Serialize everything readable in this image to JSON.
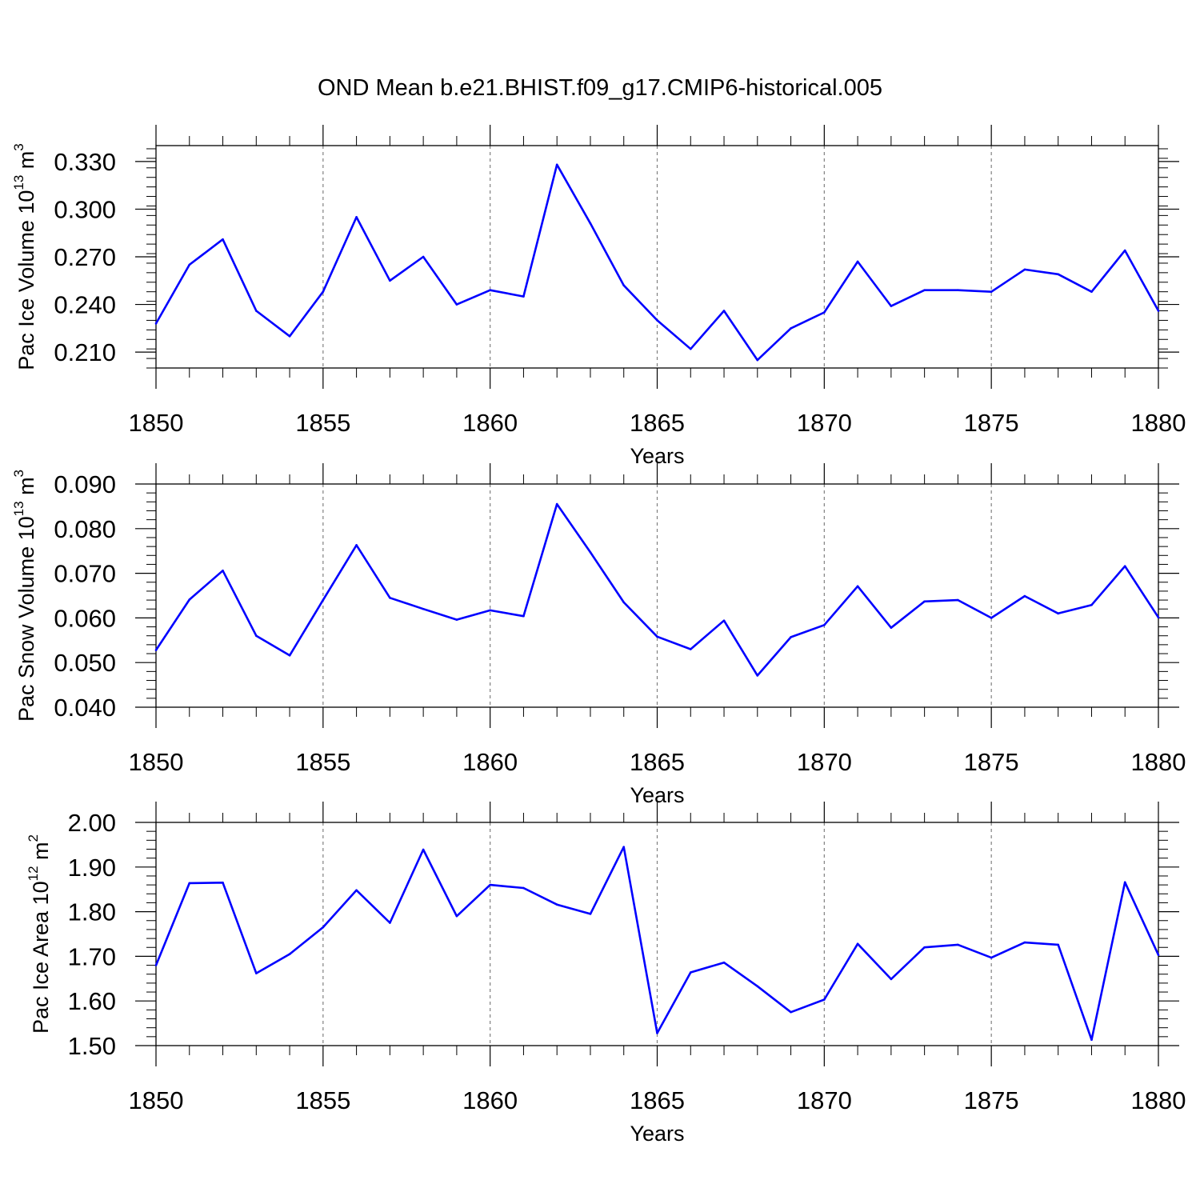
{
  "figure_title": "OND Mean b.e21.BHIST.f09_g17.CMIP6-historical.005",
  "colors": {
    "line": "#0000ff",
    "axis": "#000000",
    "grid": "#808080"
  },
  "chart_data": [
    {
      "type": "line",
      "title": "OND Mean b.e21.BHIST.f09_g17.CMIP6-historical.005",
      "xlabel": "Years",
      "ylabel": {
        "base": "Pac Ice Volume 10",
        "exp": "13",
        "unit": " m",
        "unit_exp": "3"
      },
      "xlim": [
        1850,
        1880
      ],
      "ylim": [
        0.2,
        0.34
      ],
      "xticks": [
        1850,
        1855,
        1860,
        1865,
        1870,
        1875,
        1880
      ],
      "xtick_labels": [
        "1850",
        "1855",
        "1860",
        "1865",
        "1870",
        "1875",
        "1880"
      ],
      "yticks": [
        0.21,
        0.24,
        0.27,
        0.3,
        0.33
      ],
      "ytick_labels": [
        "0.210",
        "0.240",
        "0.270",
        "0.300",
        "0.330"
      ],
      "x": [
        1850,
        1851,
        1852,
        1853,
        1854,
        1855,
        1856,
        1857,
        1858,
        1859,
        1860,
        1861,
        1862,
        1863,
        1864,
        1865,
        1866,
        1867,
        1868,
        1869,
        1870,
        1871,
        1872,
        1873,
        1874,
        1875,
        1876,
        1877,
        1878,
        1879,
        1880
      ],
      "values": [
        0.228,
        0.265,
        0.281,
        0.236,
        0.22,
        0.248,
        0.295,
        0.255,
        0.27,
        0.24,
        0.249,
        0.245,
        0.328,
        0.291,
        0.252,
        0.23,
        0.212,
        0.236,
        0.205,
        0.225,
        0.235,
        0.267,
        0.239,
        0.249,
        0.249,
        0.248,
        0.262,
        0.259,
        0.248,
        0.274,
        0.236
      ]
    },
    {
      "type": "line",
      "xlabel": "Years",
      "ylabel": {
        "base": "Pac Snow Volume 10",
        "exp": "13",
        "unit": " m",
        "unit_exp": "3"
      },
      "xlim": [
        1850,
        1880
      ],
      "ylim": [
        0.04,
        0.09
      ],
      "xticks": [
        1850,
        1855,
        1860,
        1865,
        1870,
        1875,
        1880
      ],
      "xtick_labels": [
        "1850",
        "1855",
        "1860",
        "1865",
        "1870",
        "1875",
        "1880"
      ],
      "yticks": [
        0.04,
        0.05,
        0.06,
        0.07,
        0.08,
        0.09
      ],
      "ytick_labels": [
        "0.040",
        "0.050",
        "0.060",
        "0.070",
        "0.080",
        "0.090"
      ],
      "x": [
        1850,
        1851,
        1852,
        1853,
        1854,
        1855,
        1856,
        1857,
        1858,
        1859,
        1860,
        1861,
        1862,
        1863,
        1864,
        1865,
        1866,
        1867,
        1868,
        1869,
        1870,
        1871,
        1872,
        1873,
        1874,
        1875,
        1876,
        1877,
        1878,
        1879,
        1880
      ],
      "values": [
        0.0528,
        0.0641,
        0.0706,
        0.056,
        0.0516,
        0.064,
        0.0763,
        0.0645,
        0.062,
        0.0596,
        0.0617,
        0.0604,
        0.0855,
        0.0747,
        0.0635,
        0.0558,
        0.053,
        0.0594,
        0.0471,
        0.0557,
        0.0584,
        0.0671,
        0.0578,
        0.0637,
        0.064,
        0.06,
        0.0649,
        0.061,
        0.0629,
        0.0716,
        0.0601
      ]
    },
    {
      "type": "line",
      "xlabel": "Years",
      "ylabel": {
        "base": "Pac Ice Area 10",
        "exp": "12",
        "unit": " m",
        "unit_exp": "2"
      },
      "xlim": [
        1850,
        1880
      ],
      "ylim": [
        1.5,
        2.0
      ],
      "xticks": [
        1850,
        1855,
        1860,
        1865,
        1870,
        1875,
        1880
      ],
      "xtick_labels": [
        "1850",
        "1855",
        "1860",
        "1865",
        "1870",
        "1875",
        "1880"
      ],
      "yticks": [
        1.5,
        1.6,
        1.7,
        1.8,
        1.9,
        2.0
      ],
      "ytick_labels": [
        "1.50",
        "1.60",
        "1.70",
        "1.80",
        "1.90",
        "2.00"
      ],
      "x": [
        1850,
        1851,
        1852,
        1853,
        1854,
        1855,
        1856,
        1857,
        1858,
        1859,
        1860,
        1861,
        1862,
        1863,
        1864,
        1865,
        1866,
        1867,
        1868,
        1869,
        1870,
        1871,
        1872,
        1873,
        1874,
        1875,
        1876,
        1877,
        1878,
        1879,
        1880
      ],
      "values": [
        1.68,
        1.864,
        1.865,
        1.662,
        1.705,
        1.765,
        1.848,
        1.775,
        1.939,
        1.79,
        1.86,
        1.853,
        1.816,
        1.795,
        1.945,
        1.528,
        1.664,
        1.686,
        1.633,
        1.575,
        1.603,
        1.728,
        1.649,
        1.72,
        1.726,
        1.697,
        1.731,
        1.726,
        1.513,
        1.866,
        1.703
      ]
    }
  ]
}
